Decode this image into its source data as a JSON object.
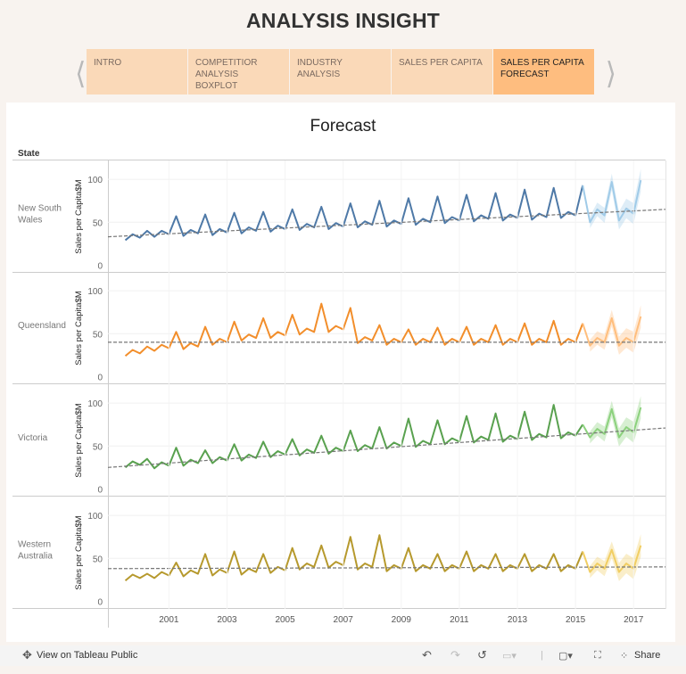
{
  "header": {
    "title": "ANALYSIS INSIGHT"
  },
  "tabs": [
    {
      "label": "INTRO",
      "active": false
    },
    {
      "label": "COMPETITIOR ANALYSIS BOXPLOT",
      "active": false
    },
    {
      "label": "INDUSTRY ANALYSIS",
      "active": false
    },
    {
      "label": "SALES PER CAPITA",
      "active": false
    },
    {
      "label": "SALES PER CAPITA FORECAST",
      "active": true
    }
  ],
  "nav": {
    "prev_icon": "chevron-left-icon",
    "next_icon": "chevron-right-icon"
  },
  "chart_data": {
    "type": "line",
    "title": "Forecast",
    "row_header": "State",
    "ylabel": "Sales per Capita$M",
    "ylim": [
      -9,
      122
    ],
    "yticks": [
      0,
      50,
      100
    ],
    "xlim": [
      1999.4,
      2018.6
    ],
    "xticks": [
      "2001",
      "2003",
      "2005",
      "2007",
      "2009",
      "2011",
      "2013",
      "2015",
      "2017"
    ],
    "x_start": "2000 Q1",
    "frequency": "quarterly",
    "forecast_start": "2016 Q1",
    "forecast_interval": 7,
    "grid": true,
    "series": [
      {
        "name": "New South Wales",
        "color": "#4e79a7",
        "forecast_color": "#a0cbe8",
        "values": [
          29,
          36,
          32,
          40,
          33,
          40,
          36,
          57,
          34,
          41,
          37,
          59,
          35,
          42,
          38,
          61,
          37,
          44,
          40,
          62,
          39,
          46,
          42,
          65,
          41,
          48,
          44,
          68,
          42,
          49,
          45,
          72,
          44,
          51,
          47,
          75,
          45,
          52,
          48,
          78,
          47,
          54,
          50,
          80,
          49,
          56,
          52,
          82,
          51,
          58,
          54,
          84,
          52,
          59,
          55,
          88,
          53,
          60,
          56,
          90,
          55,
          62,
          58,
          93
        ],
        "forecast": [
          50,
          65,
          58,
          97,
          52,
          66,
          60,
          99
        ],
        "trend_line": {
          "from": [
            1999.4,
            33
          ],
          "to": [
            2018.6,
            65
          ]
        }
      },
      {
        "name": "Queensland",
        "color": "#f28e2b",
        "forecast_color": "#ffbe7d",
        "values": [
          24,
          31,
          27,
          35,
          30,
          37,
          33,
          52,
          32,
          39,
          35,
          58,
          37,
          44,
          40,
          64,
          42,
          49,
          45,
          68,
          45,
          52,
          48,
          72,
          49,
          56,
          52,
          85,
          52,
          59,
          55,
          80,
          39,
          46,
          42,
          60,
          37,
          44,
          40,
          55,
          37,
          44,
          40,
          57,
          37,
          44,
          40,
          58,
          37,
          44,
          40,
          60,
          37,
          44,
          40,
          62,
          37,
          44,
          40,
          65,
          37,
          44,
          40,
          62
        ],
        "forecast": [
          36,
          45,
          40,
          68,
          36,
          45,
          40,
          70
        ],
        "trend_line": {
          "from": [
            1999.4,
            40
          ],
          "to": [
            2018.6,
            40
          ]
        }
      },
      {
        "name": "Victoria",
        "color": "#59a14f",
        "forecast_color": "#8cd17d",
        "values": [
          25,
          32,
          28,
          35,
          24,
          31,
          27,
          48,
          27,
          34,
          30,
          45,
          30,
          37,
          33,
          52,
          33,
          40,
          36,
          55,
          37,
          44,
          40,
          58,
          39,
          46,
          42,
          62,
          41,
          48,
          44,
          68,
          44,
          51,
          47,
          72,
          47,
          54,
          50,
          82,
          49,
          56,
          52,
          80,
          52,
          59,
          55,
          85,
          54,
          61,
          57,
          88,
          55,
          62,
          58,
          90,
          57,
          64,
          60,
          98,
          59,
          66,
          62,
          75
        ],
        "forecast": [
          60,
          70,
          64,
          93,
          60,
          72,
          66,
          95
        ],
        "trend_line": {
          "from": [
            1999.4,
            25
          ],
          "to": [
            2018.6,
            71
          ]
        }
      },
      {
        "name": "Western Australia",
        "color": "#b6992d",
        "forecast_color": "#f1ce63",
        "values": [
          24,
          31,
          27,
          32,
          27,
          34,
          30,
          45,
          29,
          36,
          32,
          55,
          30,
          37,
          33,
          58,
          31,
          38,
          34,
          55,
          33,
          40,
          36,
          62,
          37,
          44,
          40,
          65,
          39,
          46,
          42,
          75,
          37,
          44,
          40,
          77,
          35,
          42,
          38,
          62,
          35,
          42,
          38,
          55,
          35,
          42,
          38,
          58,
          35,
          42,
          38,
          55,
          35,
          42,
          38,
          55,
          35,
          42,
          38,
          55,
          35,
          42,
          38,
          58
        ],
        "forecast": [
          34,
          44,
          38,
          60,
          34,
          44,
          38,
          65
        ],
        "trend_line": {
          "from": [
            1999.4,
            38
          ],
          "to": [
            2018.6,
            40
          ]
        }
      }
    ]
  },
  "row_labels": [
    "New South\nWales",
    "Queensland",
    "Victoria",
    "Western\nAustralia"
  ],
  "toolbar": {
    "view_label": "View on Tableau Public",
    "share_label": "Share"
  }
}
